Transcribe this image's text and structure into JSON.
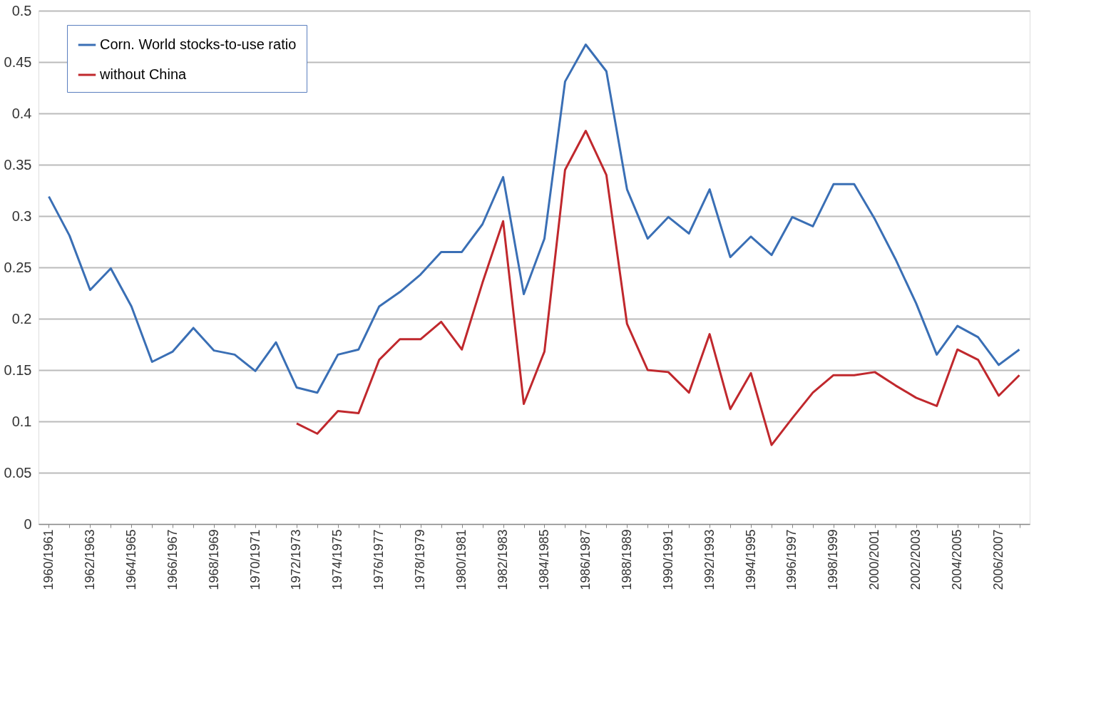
{
  "chart_data": {
    "type": "line",
    "categories": [
      "1960/1961",
      null,
      "1962/1963",
      null,
      "1964/1965",
      null,
      "1966/1967",
      null,
      "1968/1969",
      null,
      "1970/1971",
      null,
      "1972/1973",
      null,
      "1974/1975",
      null,
      "1976/1977",
      null,
      "1978/1979",
      null,
      "1980/1981",
      null,
      "1982/1983",
      null,
      "1984/1985",
      null,
      "1986/1987",
      null,
      "1988/1989",
      null,
      "1990/1991",
      null,
      "1992/1993",
      null,
      "1994/1995",
      null,
      "1996/1997",
      null,
      "1998/1999",
      null,
      "2000/2001",
      null,
      "2002/2003",
      null,
      "2004/2005",
      null,
      "2006/2007",
      null
    ],
    "series": [
      {
        "name": "Corn. World stocks-to-use ratio",
        "color": "#3a6fb5",
        "values": [
          0.319,
          0.281,
          0.228,
          0.249,
          0.212,
          0.158,
          0.168,
          0.191,
          0.169,
          0.165,
          0.149,
          0.177,
          0.133,
          0.128,
          0.165,
          0.17,
          0.212,
          0.226,
          0.243,
          0.265,
          0.265,
          0.292,
          0.338,
          0.224,
          0.278,
          0.431,
          0.467,
          0.441,
          0.326,
          0.278,
          0.299,
          0.283,
          0.326,
          0.26,
          0.28,
          0.262,
          0.299,
          0.29,
          0.331,
          0.331,
          0.297,
          0.258,
          0.215,
          0.165,
          0.193,
          0.182,
          0.155,
          0.17
        ]
      },
      {
        "name": "without China",
        "color": "#c0282d",
        "values": [
          null,
          null,
          null,
          null,
          null,
          null,
          null,
          null,
          null,
          null,
          null,
          null,
          0.098,
          0.088,
          0.11,
          0.108,
          0.16,
          0.18,
          0.18,
          0.197,
          0.17,
          0.235,
          0.295,
          0.117,
          0.168,
          0.345,
          0.383,
          0.34,
          0.195,
          0.15,
          0.148,
          0.128,
          0.185,
          0.112,
          0.147,
          0.077,
          0.103,
          0.128,
          0.145,
          0.145,
          0.148,
          0.135,
          0.123,
          0.115,
          0.17,
          0.16,
          0.125,
          0.145
        ]
      }
    ],
    "ylim": [
      0,
      0.5
    ],
    "yticks": [
      0,
      0.05,
      0.1,
      0.15,
      0.2,
      0.25,
      0.3,
      0.35,
      0.4,
      0.45,
      0.5
    ],
    "grid": "y",
    "legend": "top left",
    "line_style": "solid",
    "marker": "none"
  }
}
